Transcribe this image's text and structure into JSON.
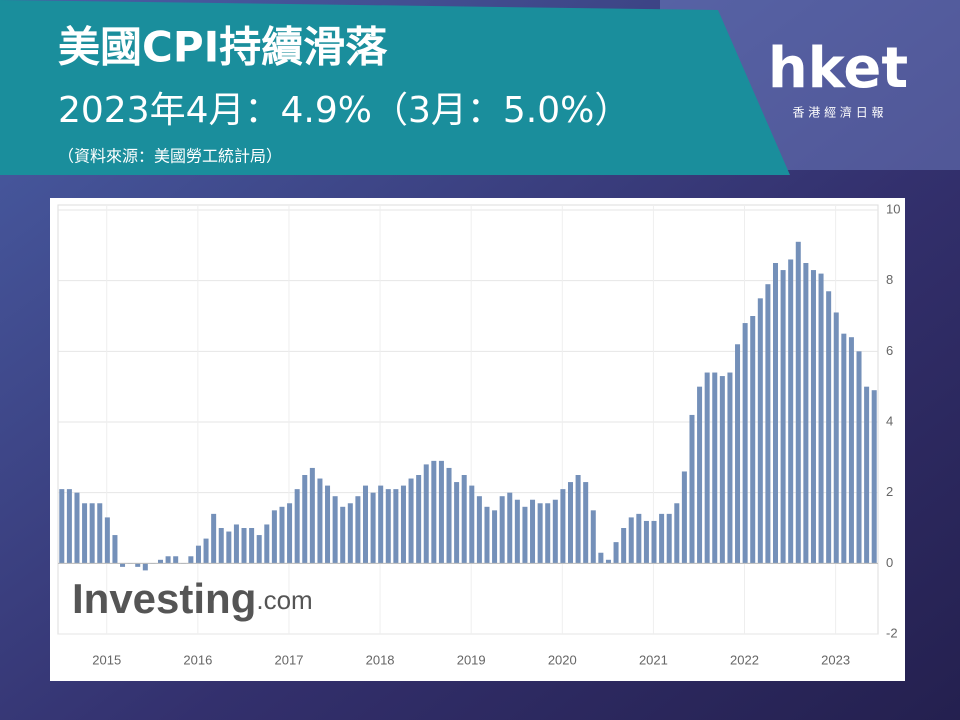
{
  "chart_data": {
    "type": "bar",
    "title": "美國CPI持續滑落",
    "subtitle": "2023年4月：4.9%（3月：5.0%）",
    "source": "（資料來源：美國勞工統計局）",
    "watermark": {
      "main": "Investing",
      "suffix": ".com"
    },
    "categories": [
      null,
      null,
      null,
      null,
      null,
      null,
      null,
      null,
      "2015",
      null,
      null,
      null,
      null,
      null,
      null,
      null,
      null,
      null,
      null,
      null,
      "2016",
      null,
      null,
      null,
      null,
      null,
      null,
      null,
      null,
      null,
      null,
      null,
      "2017",
      null,
      null,
      null,
      null,
      null,
      null,
      null,
      null,
      null,
      null,
      null,
      "2018",
      null,
      null,
      null,
      null,
      null,
      null,
      null,
      null,
      null,
      null,
      null,
      "2019",
      null,
      null,
      null,
      null,
      null,
      null,
      null,
      null,
      null,
      null,
      null,
      "2020",
      null,
      null,
      null,
      null,
      null,
      null,
      null,
      null,
      null,
      null,
      null,
      "2021",
      null,
      null,
      null,
      null,
      null,
      null,
      null,
      null,
      null,
      null,
      null,
      "2022",
      null,
      null,
      null,
      null,
      null,
      null,
      null,
      null,
      null,
      null,
      null,
      "2023",
      null,
      null,
      null
    ],
    "values": [
      2.1,
      2.1,
      2.0,
      1.7,
      1.7,
      1.7,
      1.3,
      0.8,
      -0.1,
      0.0,
      -0.1,
      -0.2,
      0.0,
      0.1,
      0.2,
      0.2,
      0.0,
      0.2,
      0.5,
      0.7,
      1.4,
      1.0,
      0.9,
      1.1,
      1.0,
      1.0,
      0.8,
      1.1,
      1.5,
      1.6,
      1.7,
      2.1,
      2.5,
      2.7,
      2.4,
      2.2,
      1.9,
      1.6,
      1.7,
      1.9,
      2.2,
      2.0,
      2.2,
      2.1,
      2.1,
      2.2,
      2.4,
      2.5,
      2.8,
      2.9,
      2.9,
      2.7,
      2.3,
      2.5,
      2.2,
      1.9,
      1.6,
      1.5,
      1.9,
      2.0,
      1.8,
      1.6,
      1.8,
      1.7,
      1.7,
      1.8,
      2.1,
      2.3,
      2.5,
      2.3,
      1.5,
      0.3,
      0.1,
      0.6,
      1.0,
      1.3,
      1.4,
      1.2,
      1.2,
      1.4,
      1.4,
      1.7,
      2.6,
      4.2,
      5.0,
      5.4,
      5.4,
      5.3,
      5.4,
      6.2,
      6.8,
      7.0,
      7.5,
      7.9,
      8.5,
      8.3,
      8.6,
      9.1,
      8.5,
      8.3,
      8.2,
      7.7,
      7.1,
      6.5,
      6.4,
      6.0,
      5.0,
      4.9
    ],
    "color": "#7490b9",
    "ylim": [
      -2,
      10
    ],
    "yticks": [
      -2,
      0,
      2,
      4,
      6,
      8,
      10
    ],
    "grid": true,
    "y_axis_side": "right"
  },
  "branding": {
    "logo": "hket",
    "tagline": "香 港 經 濟 日 報"
  }
}
